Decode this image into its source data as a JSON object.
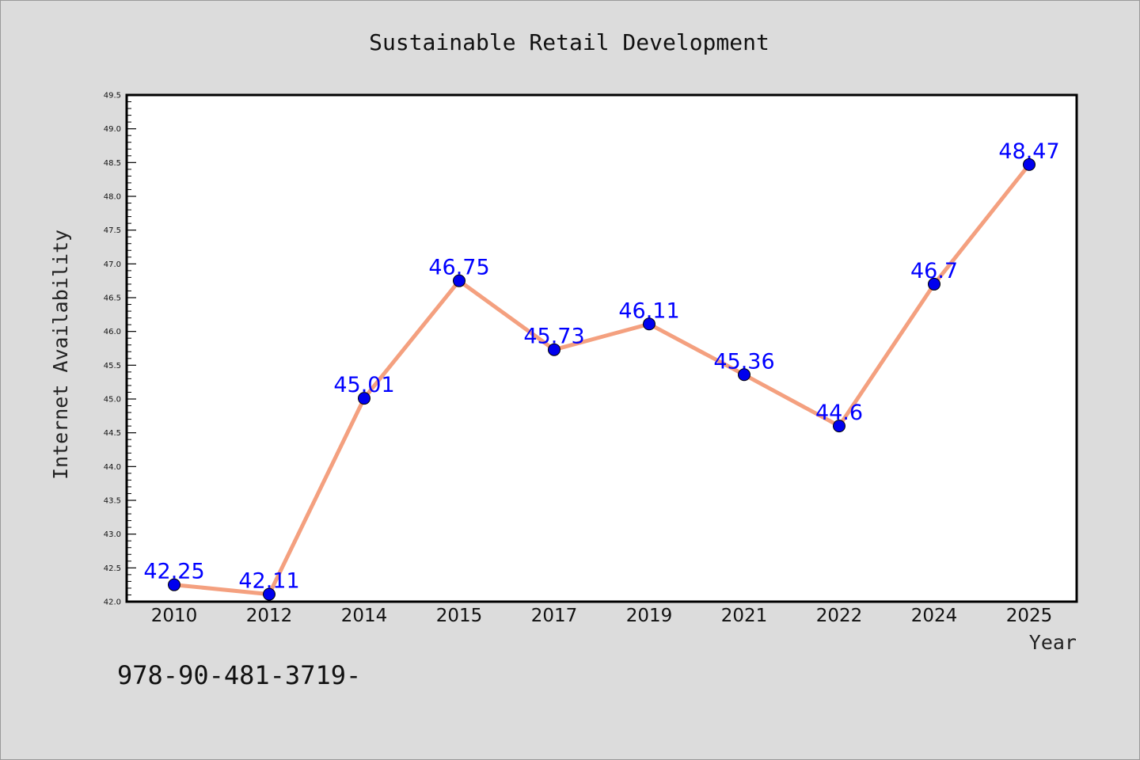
{
  "chart_data": {
    "type": "line",
    "title": "Sustainable Retail Development",
    "xlabel": "Year",
    "ylabel": "Internet Availability",
    "categories": [
      "2010",
      "2012",
      "2014",
      "2015",
      "2017",
      "2019",
      "2021",
      "2022",
      "2024",
      "2025"
    ],
    "series": [
      {
        "values": [
          42.25,
          42.11,
          45.01,
          46.75,
          45.73,
          46.11,
          45.36,
          44.6,
          46.7,
          48.47
        ],
        "data_labels": [
          "42.25",
          "42.11",
          "45.01",
          "46.75",
          "45.73",
          "46.11",
          "45.36",
          "44.6",
          "46.7",
          "48.47"
        ],
        "line_color": "#f4a07f",
        "marker_color": "#0000ee"
      }
    ],
    "ylim": [
      42.0,
      49.5
    ],
    "yticks": [
      "42.0",
      "42.5",
      "43.0",
      "43.5",
      "44.0",
      "44.5",
      "45.0",
      "45.5",
      "46.0",
      "46.5",
      "47.0",
      "47.5",
      "48.0",
      "48.5",
      "49.0",
      "49.5"
    ],
    "grid": false,
    "legend": "none",
    "label_color": "#0000ff"
  },
  "footer": {
    "code": "978-90-481-3719-"
  }
}
